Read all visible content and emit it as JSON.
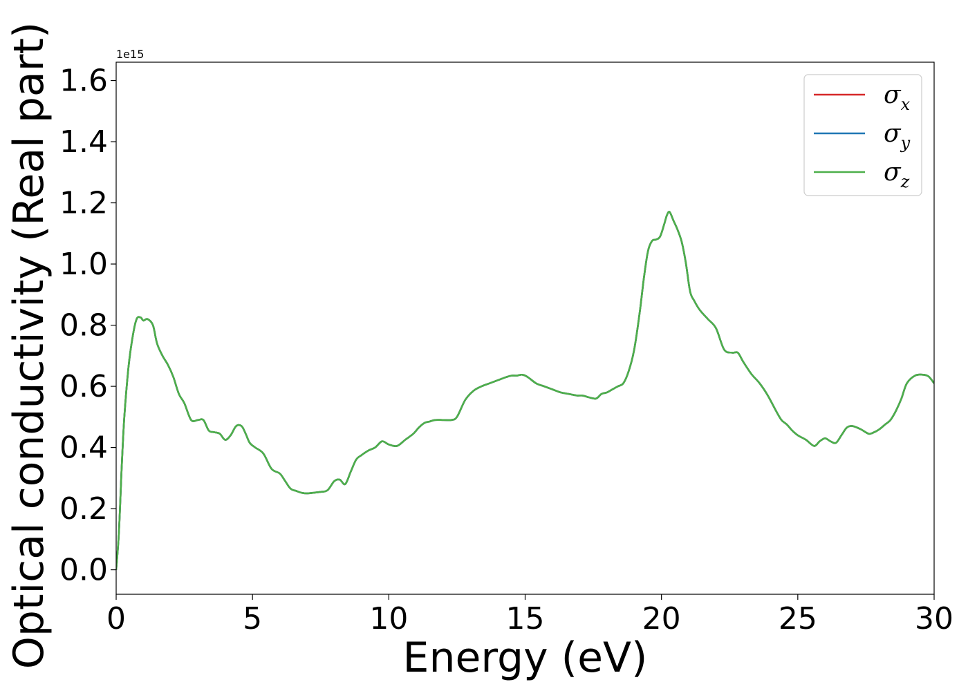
{
  "chart_data": {
    "type": "line",
    "xlabel": "Energy (eV)",
    "ylabel": "Optical conductivity (Real part)",
    "offset_text": "1e15",
    "xlim": [
      0,
      30
    ],
    "ylim": [
      -0.08,
      1.66
    ],
    "y_scale_factor": 1000000000000000.0,
    "xticks": [
      0,
      5,
      10,
      15,
      20,
      25,
      30
    ],
    "xtick_labels": [
      "0",
      "5",
      "10",
      "15",
      "20",
      "25",
      "30"
    ],
    "yticks": [
      0.0,
      0.2,
      0.4,
      0.6,
      0.8,
      1.0,
      1.2,
      1.4,
      1.6
    ],
    "ytick_labels": [
      "0.0",
      "0.2",
      "0.4",
      "0.6",
      "0.8",
      "1.0",
      "1.2",
      "1.4",
      "1.6"
    ],
    "grid": false,
    "legend_position": "top-right",
    "x": [
      0,
      0.1,
      0.2,
      0.3,
      0.45,
      0.6,
      0.75,
      0.9,
      1.0,
      1.15,
      1.35,
      1.5,
      1.7,
      1.9,
      2.1,
      2.3,
      2.5,
      2.75,
      3.0,
      3.2,
      3.4,
      3.6,
      3.8,
      4.0,
      4.2,
      4.4,
      4.6,
      4.75,
      4.9,
      5.1,
      5.4,
      5.7,
      6.0,
      6.2,
      6.4,
      6.6,
      6.8,
      7.0,
      7.25,
      7.5,
      7.75,
      8.0,
      8.2,
      8.4,
      8.6,
      8.8,
      9.0,
      9.25,
      9.5,
      9.75,
      10.0,
      10.3,
      10.6,
      10.9,
      11.1,
      11.3,
      11.5,
      11.7,
      12.0,
      12.3,
      12.5,
      12.8,
      13.1,
      13.4,
      13.7,
      14.0,
      14.3,
      14.5,
      14.7,
      14.9,
      15.1,
      15.4,
      15.7,
      16.0,
      16.3,
      16.6,
      16.9,
      17.1,
      17.3,
      17.6,
      17.8,
      18.0,
      18.2,
      18.4,
      18.6,
      18.8,
      19.0,
      19.2,
      19.35,
      19.5,
      19.65,
      19.8,
      19.95,
      20.1,
      20.2,
      20.3,
      20.45,
      20.6,
      20.75,
      20.9,
      21.05,
      21.2,
      21.4,
      21.7,
      22.0,
      22.3,
      22.6,
      22.8,
      23.0,
      23.3,
      23.6,
      23.9,
      24.2,
      24.4,
      24.6,
      24.8,
      25.0,
      25.3,
      25.6,
      25.8,
      26.0,
      26.2,
      26.4,
      26.6,
      26.8,
      27.0,
      27.3,
      27.6,
      27.8,
      28.0,
      28.2,
      28.4,
      28.6,
      28.8,
      29.0,
      29.3,
      29.6,
      29.8,
      30.0
    ],
    "series": [
      {
        "name": "σx",
        "color": "#d62728",
        "y": [
          0.0,
          0.12,
          0.33,
          0.5,
          0.66,
          0.76,
          0.82,
          0.825,
          0.815,
          0.82,
          0.8,
          0.74,
          0.7,
          0.67,
          0.63,
          0.575,
          0.545,
          0.49,
          0.49,
          0.49,
          0.455,
          0.45,
          0.445,
          0.425,
          0.44,
          0.47,
          0.47,
          0.445,
          0.415,
          0.4,
          0.38,
          0.33,
          0.315,
          0.29,
          0.265,
          0.258,
          0.252,
          0.25,
          0.252,
          0.255,
          0.26,
          0.29,
          0.295,
          0.28,
          0.32,
          0.36,
          0.375,
          0.39,
          0.4,
          0.42,
          0.41,
          0.405,
          0.425,
          0.445,
          0.465,
          0.48,
          0.485,
          0.49,
          0.49,
          0.49,
          0.5,
          0.555,
          0.585,
          0.6,
          0.61,
          0.62,
          0.63,
          0.635,
          0.635,
          0.638,
          0.63,
          0.61,
          0.6,
          0.59,
          0.58,
          0.575,
          0.57,
          0.57,
          0.565,
          0.56,
          0.575,
          0.58,
          0.59,
          0.6,
          0.61,
          0.65,
          0.72,
          0.84,
          0.95,
          1.04,
          1.075,
          1.08,
          1.09,
          1.13,
          1.16,
          1.17,
          1.14,
          1.11,
          1.07,
          1.0,
          0.91,
          0.88,
          0.85,
          0.82,
          0.79,
          0.72,
          0.71,
          0.71,
          0.68,
          0.64,
          0.61,
          0.57,
          0.52,
          0.49,
          0.475,
          0.455,
          0.44,
          0.425,
          0.405,
          0.42,
          0.43,
          0.42,
          0.415,
          0.44,
          0.465,
          0.47,
          0.46,
          0.445,
          0.45,
          0.46,
          0.475,
          0.49,
          0.52,
          0.56,
          0.61,
          0.635,
          0.638,
          0.632,
          0.61
        ]
      },
      {
        "name": "σy",
        "color": "#1f77b4",
        "y": [
          0.0,
          0.12,
          0.33,
          0.5,
          0.66,
          0.76,
          0.82,
          0.825,
          0.815,
          0.82,
          0.8,
          0.74,
          0.7,
          0.67,
          0.63,
          0.575,
          0.545,
          0.49,
          0.49,
          0.49,
          0.455,
          0.45,
          0.445,
          0.425,
          0.44,
          0.47,
          0.47,
          0.445,
          0.415,
          0.4,
          0.38,
          0.33,
          0.315,
          0.29,
          0.265,
          0.258,
          0.252,
          0.25,
          0.252,
          0.255,
          0.26,
          0.29,
          0.295,
          0.28,
          0.32,
          0.36,
          0.375,
          0.39,
          0.4,
          0.42,
          0.41,
          0.405,
          0.425,
          0.445,
          0.465,
          0.48,
          0.485,
          0.49,
          0.49,
          0.49,
          0.5,
          0.555,
          0.585,
          0.6,
          0.61,
          0.62,
          0.63,
          0.635,
          0.635,
          0.638,
          0.63,
          0.61,
          0.6,
          0.59,
          0.58,
          0.575,
          0.57,
          0.57,
          0.565,
          0.56,
          0.575,
          0.58,
          0.59,
          0.6,
          0.61,
          0.65,
          0.72,
          0.84,
          0.95,
          1.04,
          1.075,
          1.08,
          1.09,
          1.13,
          1.16,
          1.17,
          1.14,
          1.11,
          1.07,
          1.0,
          0.91,
          0.88,
          0.85,
          0.82,
          0.79,
          0.72,
          0.71,
          0.71,
          0.68,
          0.64,
          0.61,
          0.57,
          0.52,
          0.49,
          0.475,
          0.455,
          0.44,
          0.425,
          0.405,
          0.42,
          0.43,
          0.42,
          0.415,
          0.44,
          0.465,
          0.47,
          0.46,
          0.445,
          0.45,
          0.46,
          0.475,
          0.49,
          0.52,
          0.56,
          0.61,
          0.635,
          0.638,
          0.632,
          0.61
        ]
      },
      {
        "name": "σz",
        "color": "#4daf4a",
        "y": [
          0.0,
          0.12,
          0.33,
          0.5,
          0.66,
          0.76,
          0.82,
          0.825,
          0.815,
          0.82,
          0.8,
          0.74,
          0.7,
          0.67,
          0.63,
          0.575,
          0.545,
          0.49,
          0.49,
          0.49,
          0.455,
          0.45,
          0.445,
          0.425,
          0.44,
          0.47,
          0.47,
          0.445,
          0.415,
          0.4,
          0.38,
          0.33,
          0.315,
          0.29,
          0.265,
          0.258,
          0.252,
          0.25,
          0.252,
          0.255,
          0.26,
          0.29,
          0.295,
          0.28,
          0.32,
          0.36,
          0.375,
          0.39,
          0.4,
          0.42,
          0.41,
          0.405,
          0.425,
          0.445,
          0.465,
          0.48,
          0.485,
          0.49,
          0.49,
          0.49,
          0.5,
          0.555,
          0.585,
          0.6,
          0.61,
          0.62,
          0.63,
          0.635,
          0.635,
          0.638,
          0.63,
          0.61,
          0.6,
          0.59,
          0.58,
          0.575,
          0.57,
          0.57,
          0.565,
          0.56,
          0.575,
          0.58,
          0.59,
          0.6,
          0.61,
          0.65,
          0.72,
          0.84,
          0.95,
          1.04,
          1.075,
          1.08,
          1.09,
          1.13,
          1.16,
          1.17,
          1.14,
          1.11,
          1.07,
          1.0,
          0.91,
          0.88,
          0.85,
          0.82,
          0.79,
          0.72,
          0.71,
          0.71,
          0.68,
          0.64,
          0.61,
          0.57,
          0.52,
          0.49,
          0.475,
          0.455,
          0.44,
          0.425,
          0.405,
          0.42,
          0.43,
          0.42,
          0.415,
          0.44,
          0.465,
          0.47,
          0.46,
          0.445,
          0.45,
          0.46,
          0.475,
          0.49,
          0.52,
          0.56,
          0.61,
          0.635,
          0.638,
          0.632,
          0.61
        ]
      }
    ],
    "legend": {
      "entries": [
        {
          "symbol": "σ",
          "sub": "x",
          "color": "#d62728"
        },
        {
          "symbol": "σ",
          "sub": "y",
          "color": "#1f77b4"
        },
        {
          "symbol": "σ",
          "sub": "z",
          "color": "#4daf4a"
        }
      ]
    }
  }
}
